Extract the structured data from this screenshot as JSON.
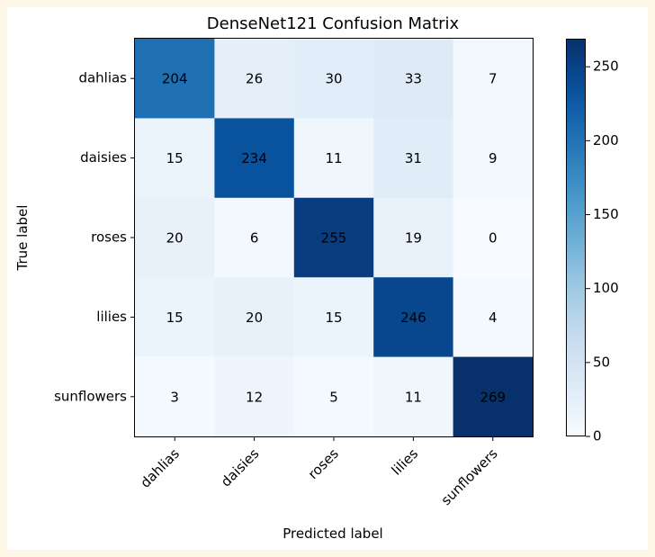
{
  "chart_data": {
    "type": "heatmap",
    "title": "DenseNet121 Confusion Matrix",
    "xlabel": "Predicted label",
    "ylabel": "True label",
    "x_categories": [
      "dahlias",
      "daisies",
      "roses",
      "lilies",
      "sunflowers"
    ],
    "y_categories": [
      "dahlias",
      "daisies",
      "roses",
      "lilies",
      "sunflowers"
    ],
    "values": [
      [
        204,
        26,
        30,
        33,
        7
      ],
      [
        15,
        234,
        11,
        31,
        9
      ],
      [
        20,
        6,
        255,
        19,
        0
      ],
      [
        15,
        20,
        15,
        246,
        4
      ],
      [
        3,
        12,
        5,
        11,
        269
      ]
    ],
    "colormap": "Blues",
    "colorbar": {
      "range": [
        0,
        269
      ],
      "ticks": [
        0,
        50,
        100,
        150,
        200,
        250
      ]
    },
    "grid": false
  }
}
